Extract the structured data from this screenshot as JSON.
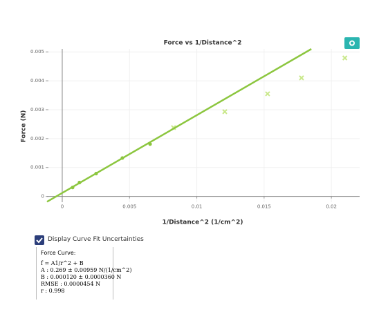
{
  "chart_data": {
    "type": "scatter",
    "title": "Force vs 1/Distance^2",
    "x_label": "1/Distance^2 (1/cm^2)",
    "y_label": "Force (N)",
    "xlim": [
      -0.00113,
      0.0221
    ],
    "ylim": [
      -0.0002,
      0.0051
    ],
    "xticks": [
      0,
      0.005,
      0.01,
      0.015,
      0.02
    ],
    "yticks": [
      0,
      0.001,
      0.002,
      0.003,
      0.004,
      0.005
    ],
    "grid": true,
    "series": [
      {
        "type": "scatter",
        "marker": "circle",
        "color": "#8cc63f",
        "x": [
          0.00077,
          0.00128,
          0.00252,
          0.00447,
          0.00653
        ],
        "values": [
          0.00031,
          0.00048,
          0.00079,
          0.00133,
          0.00181
        ]
      },
      {
        "type": "scatter",
        "marker": "x",
        "color": "#c9e88a",
        "x": [
          0.00827,
          0.01208,
          0.01526,
          0.01778,
          0.021
        ],
        "values": [
          0.00238,
          0.00293,
          0.00355,
          0.0041,
          0.00479
        ]
      },
      {
        "type": "line",
        "color": "#8cc63f",
        "x": [
          -0.00113,
          0.01851
        ],
        "values": [
          -0.000184,
          0.0051
        ]
      }
    ]
  },
  "controls": {
    "uncertainties_checkbox": "Display Curve Fit Uncertainties",
    "checked": true
  },
  "fit": {
    "heading": "Force Curve:",
    "lines": [
      "f = A1/r^2 + B",
      "A : 0.269 ± 0.00959 N/(1/cm^2)",
      "B : 0.000120 ± 0.0000360 N",
      "RMSE : 0.0000454 N",
      "r : 0.998"
    ]
  }
}
